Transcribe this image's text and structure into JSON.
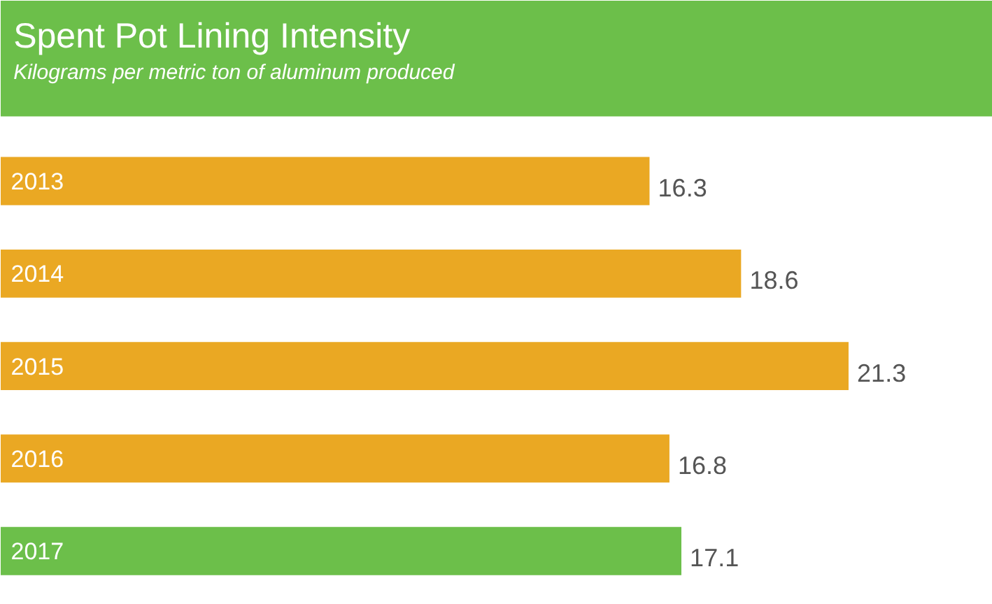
{
  "chart_data": {
    "type": "bar",
    "orientation": "horizontal",
    "title": "Spent Pot Lining Intensity",
    "subtitle": "Kilograms per metric ton of aluminum produced",
    "categories": [
      "2013",
      "2014",
      "2015",
      "2016",
      "2017"
    ],
    "values": [
      16.3,
      18.6,
      21.3,
      16.8,
      17.1
    ],
    "colors": [
      "#eaa823",
      "#eaa823",
      "#eaa823",
      "#eaa823",
      "#6cbf4a"
    ],
    "data_labels": true,
    "grid": false
  }
}
